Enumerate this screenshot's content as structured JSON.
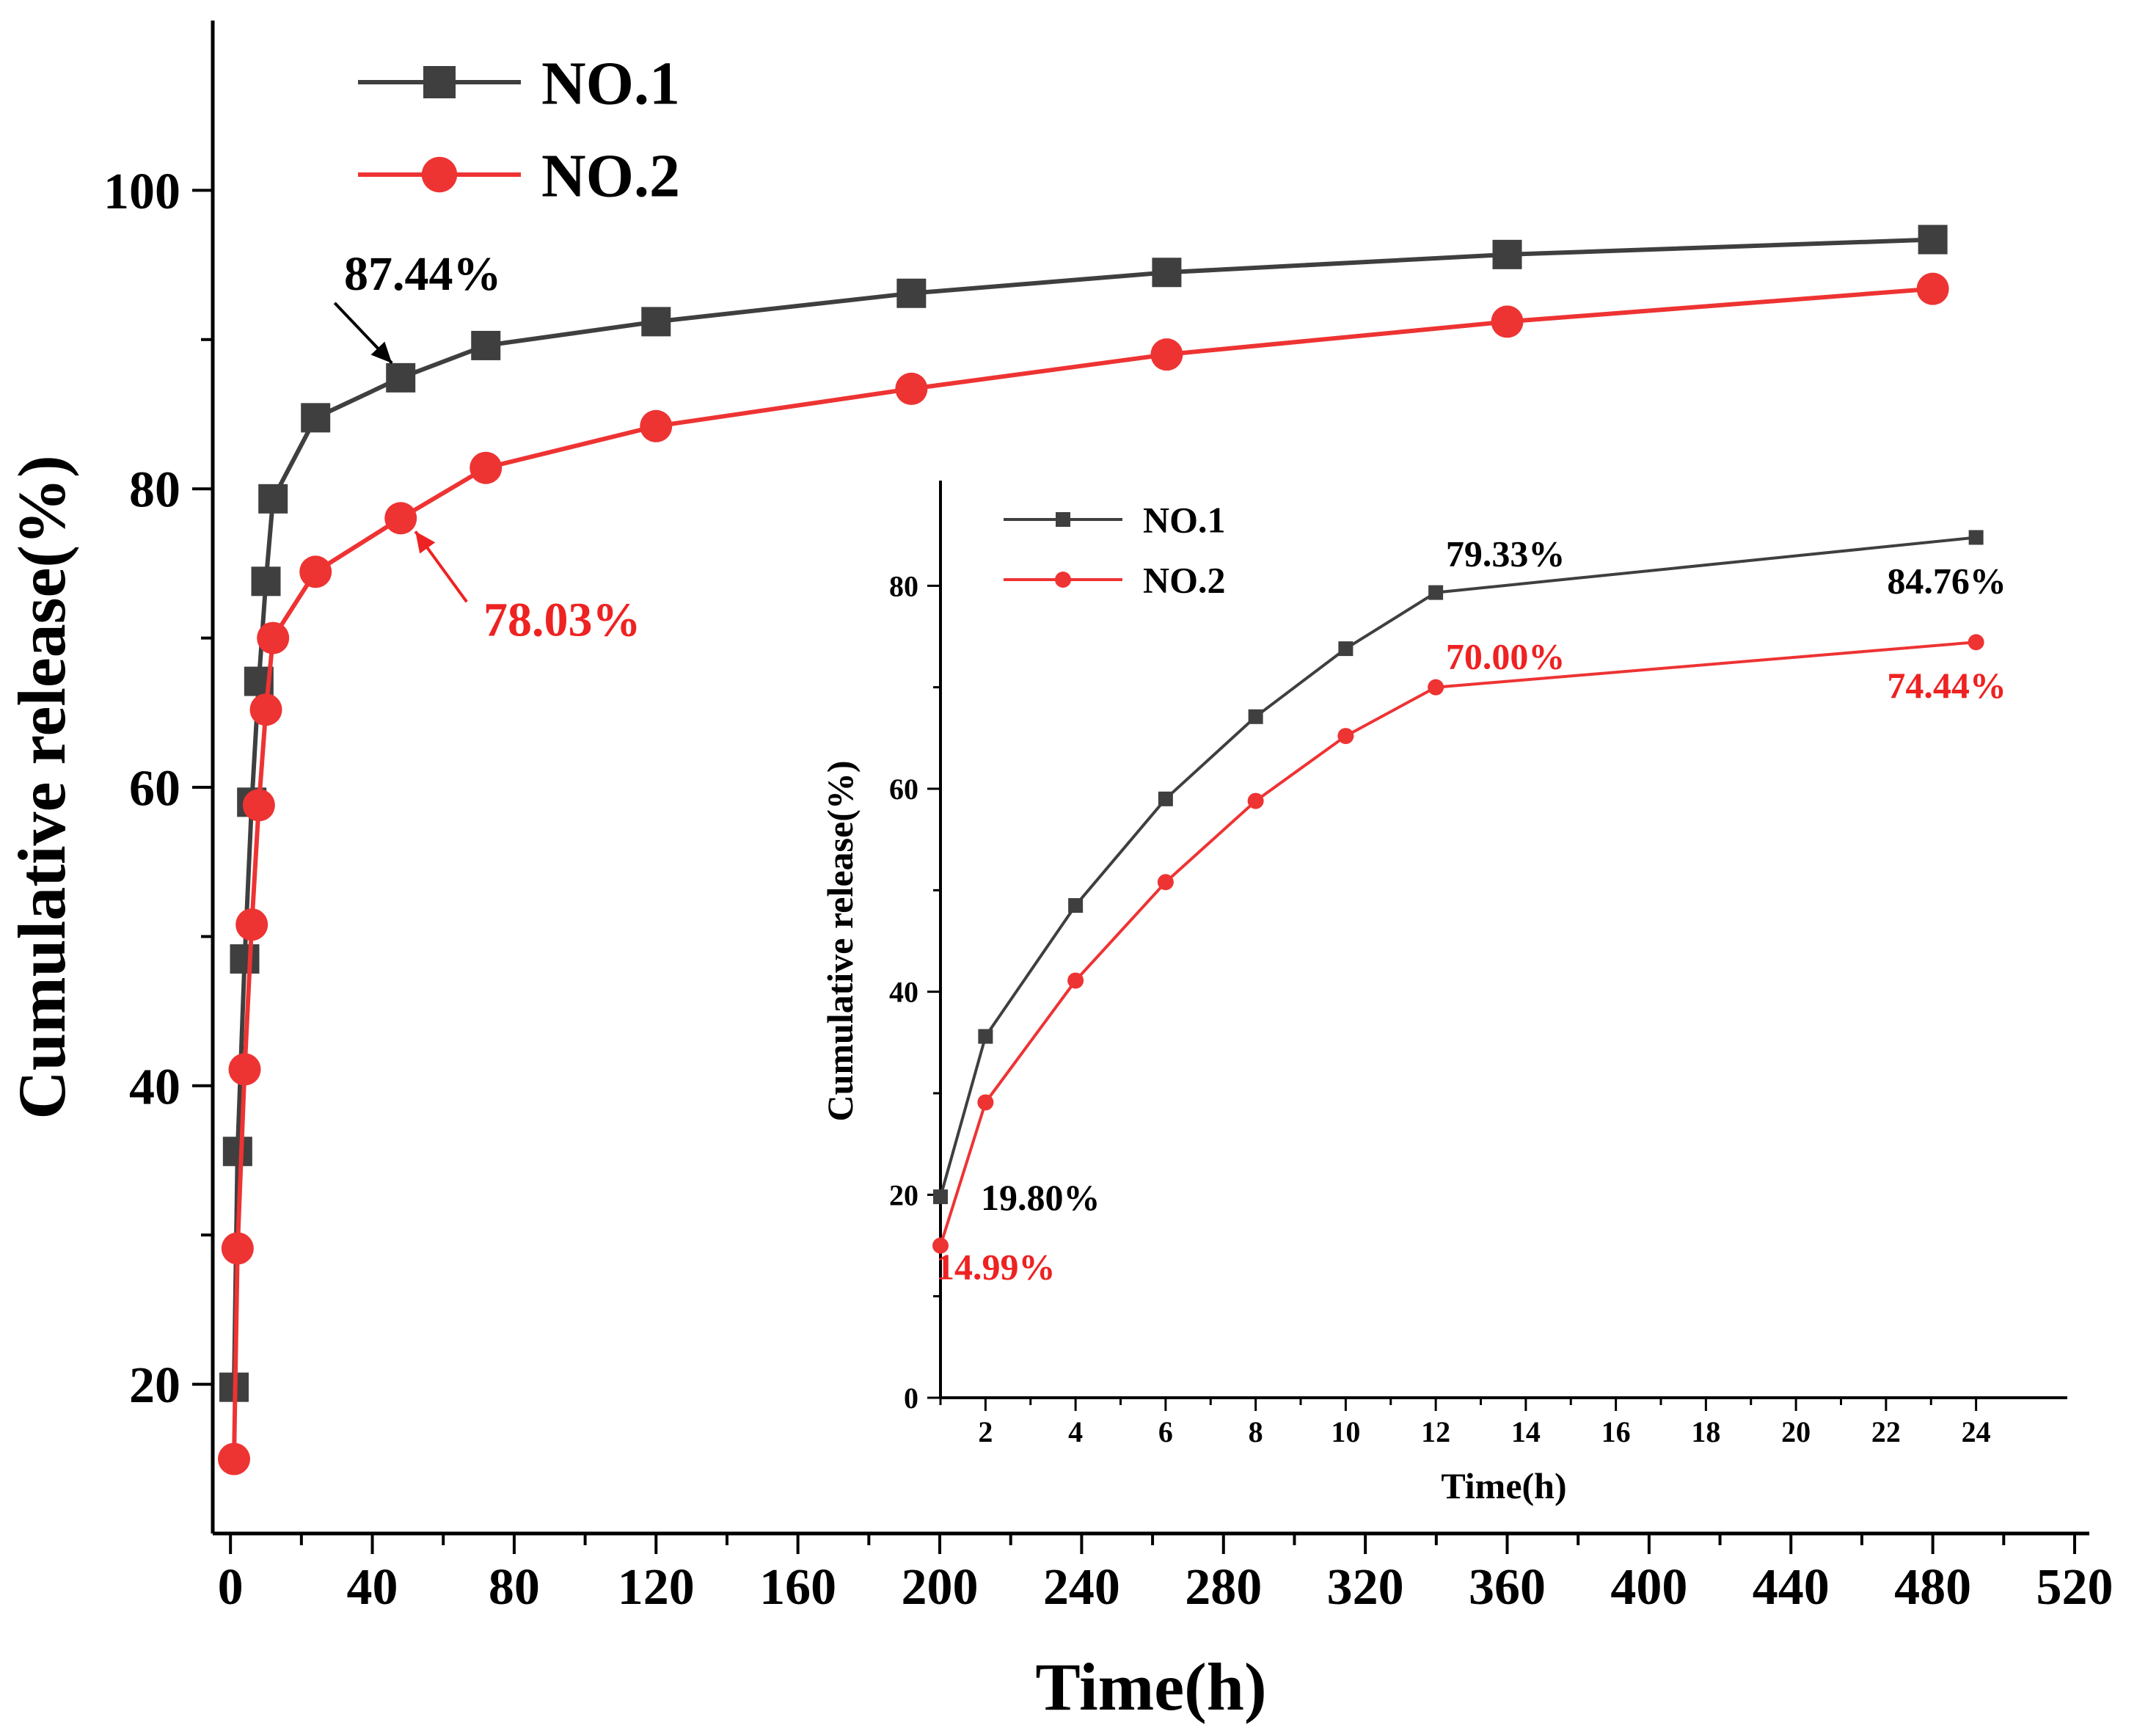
{
  "chart_data": [
    {
      "type": "line",
      "xlabel": "Time(h)",
      "ylabel": "Cumulative release(%)",
      "xlim": [
        -5,
        520
      ],
      "ylim": [
        10,
        110
      ],
      "xticks": [
        0,
        40,
        80,
        120,
        160,
        200,
        240,
        280,
        320,
        360,
        400,
        440,
        480,
        520
      ],
      "yticks": [
        20,
        40,
        60,
        80,
        100
      ],
      "legend_position": "top-left",
      "series": [
        {
          "name": "NO.1",
          "color": "#3f3f3f",
          "marker": "square",
          "x": [
            1,
            2,
            4,
            6,
            8,
            10,
            12,
            24,
            48,
            72,
            120,
            192,
            264,
            360,
            480
          ],
          "y": [
            19.8,
            35.6,
            48.5,
            59.0,
            67.1,
            73.8,
            79.33,
            84.76,
            87.44,
            89.6,
            91.2,
            93.1,
            94.5,
            95.7,
            96.7
          ]
        },
        {
          "name": "NO.2",
          "color": "#ee3333",
          "marker": "circle",
          "x": [
            1,
            2,
            4,
            6,
            8,
            10,
            12,
            24,
            48,
            72,
            120,
            192,
            264,
            360,
            480
          ],
          "y": [
            14.99,
            29.1,
            41.1,
            50.8,
            58.8,
            65.2,
            70.0,
            74.44,
            78.03,
            81.4,
            84.2,
            86.7,
            89.0,
            91.2,
            93.4
          ]
        }
      ],
      "annotations": [
        {
          "text": "87.44%",
          "series": "NO.1",
          "x": 48,
          "y": 87.44,
          "color": "#000000"
        },
        {
          "text": "78.03%",
          "series": "NO.2",
          "x": 48,
          "y": 78.03,
          "color": "#ee2222"
        }
      ]
    },
    {
      "type": "line",
      "role": "inset",
      "xlabel": "Time(h)",
      "ylabel": "Cumulative release(%)",
      "xlim": [
        1,
        25
      ],
      "ylim": [
        0,
        90
      ],
      "xticks": [
        2,
        4,
        6,
        8,
        10,
        12,
        14,
        16,
        18,
        20,
        22,
        24
      ],
      "yticks": [
        0,
        20,
        40,
        60,
        80
      ],
      "legend_position": "top-left",
      "series": [
        {
          "name": "NO.1",
          "color": "#3f3f3f",
          "marker": "square",
          "x": [
            1,
            2,
            4,
            6,
            8,
            10,
            12,
            24
          ],
          "y": [
            19.8,
            35.6,
            48.5,
            59.0,
            67.1,
            73.8,
            79.33,
            84.76
          ]
        },
        {
          "name": "NO.2",
          "color": "#ee3333",
          "marker": "circle",
          "x": [
            1,
            2,
            4,
            6,
            8,
            10,
            12,
            24
          ],
          "y": [
            14.99,
            29.1,
            41.1,
            50.8,
            58.8,
            65.2,
            70.0,
            74.44
          ]
        }
      ],
      "annotations": [
        {
          "text": "19.80%",
          "x": 1,
          "y": 19.8,
          "color": "#000000"
        },
        {
          "text": "14.99%",
          "x": 1,
          "y": 14.99,
          "color": "#ee2222"
        },
        {
          "text": "79.33%",
          "x": 12,
          "y": 79.33,
          "color": "#000000"
        },
        {
          "text": "70.00%",
          "x": 12,
          "y": 70.0,
          "color": "#ee2222"
        },
        {
          "text": "84.76%",
          "x": 24,
          "y": 84.76,
          "color": "#000000"
        },
        {
          "text": "74.44%",
          "x": 24,
          "y": 74.44,
          "color": "#ee2222"
        }
      ]
    }
  ]
}
